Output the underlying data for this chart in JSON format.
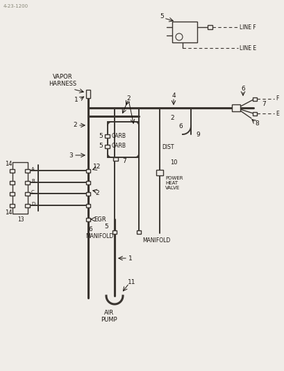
{
  "bg_color": "#f0ede8",
  "line_color": "#3a3530",
  "text_color": "#1a1510",
  "ref_text": "4-23-1200",
  "lw_main": 2.2,
  "lw_sec": 1.4,
  "lw_thin": 1.0,
  "labels": {
    "vapor_harness": "VAPOR\nHARNESS",
    "carb": "CARB",
    "egr": "EGR",
    "manifold_left": "MANIFOLD",
    "manifold_right": "MANIFOLD",
    "air_pump": "AIR\nPUMP",
    "dist": "DIST",
    "power_heat_valve": "POWER\nHEAT\nVALVE",
    "line_f": "LINE F",
    "line_e": "LINE E"
  }
}
